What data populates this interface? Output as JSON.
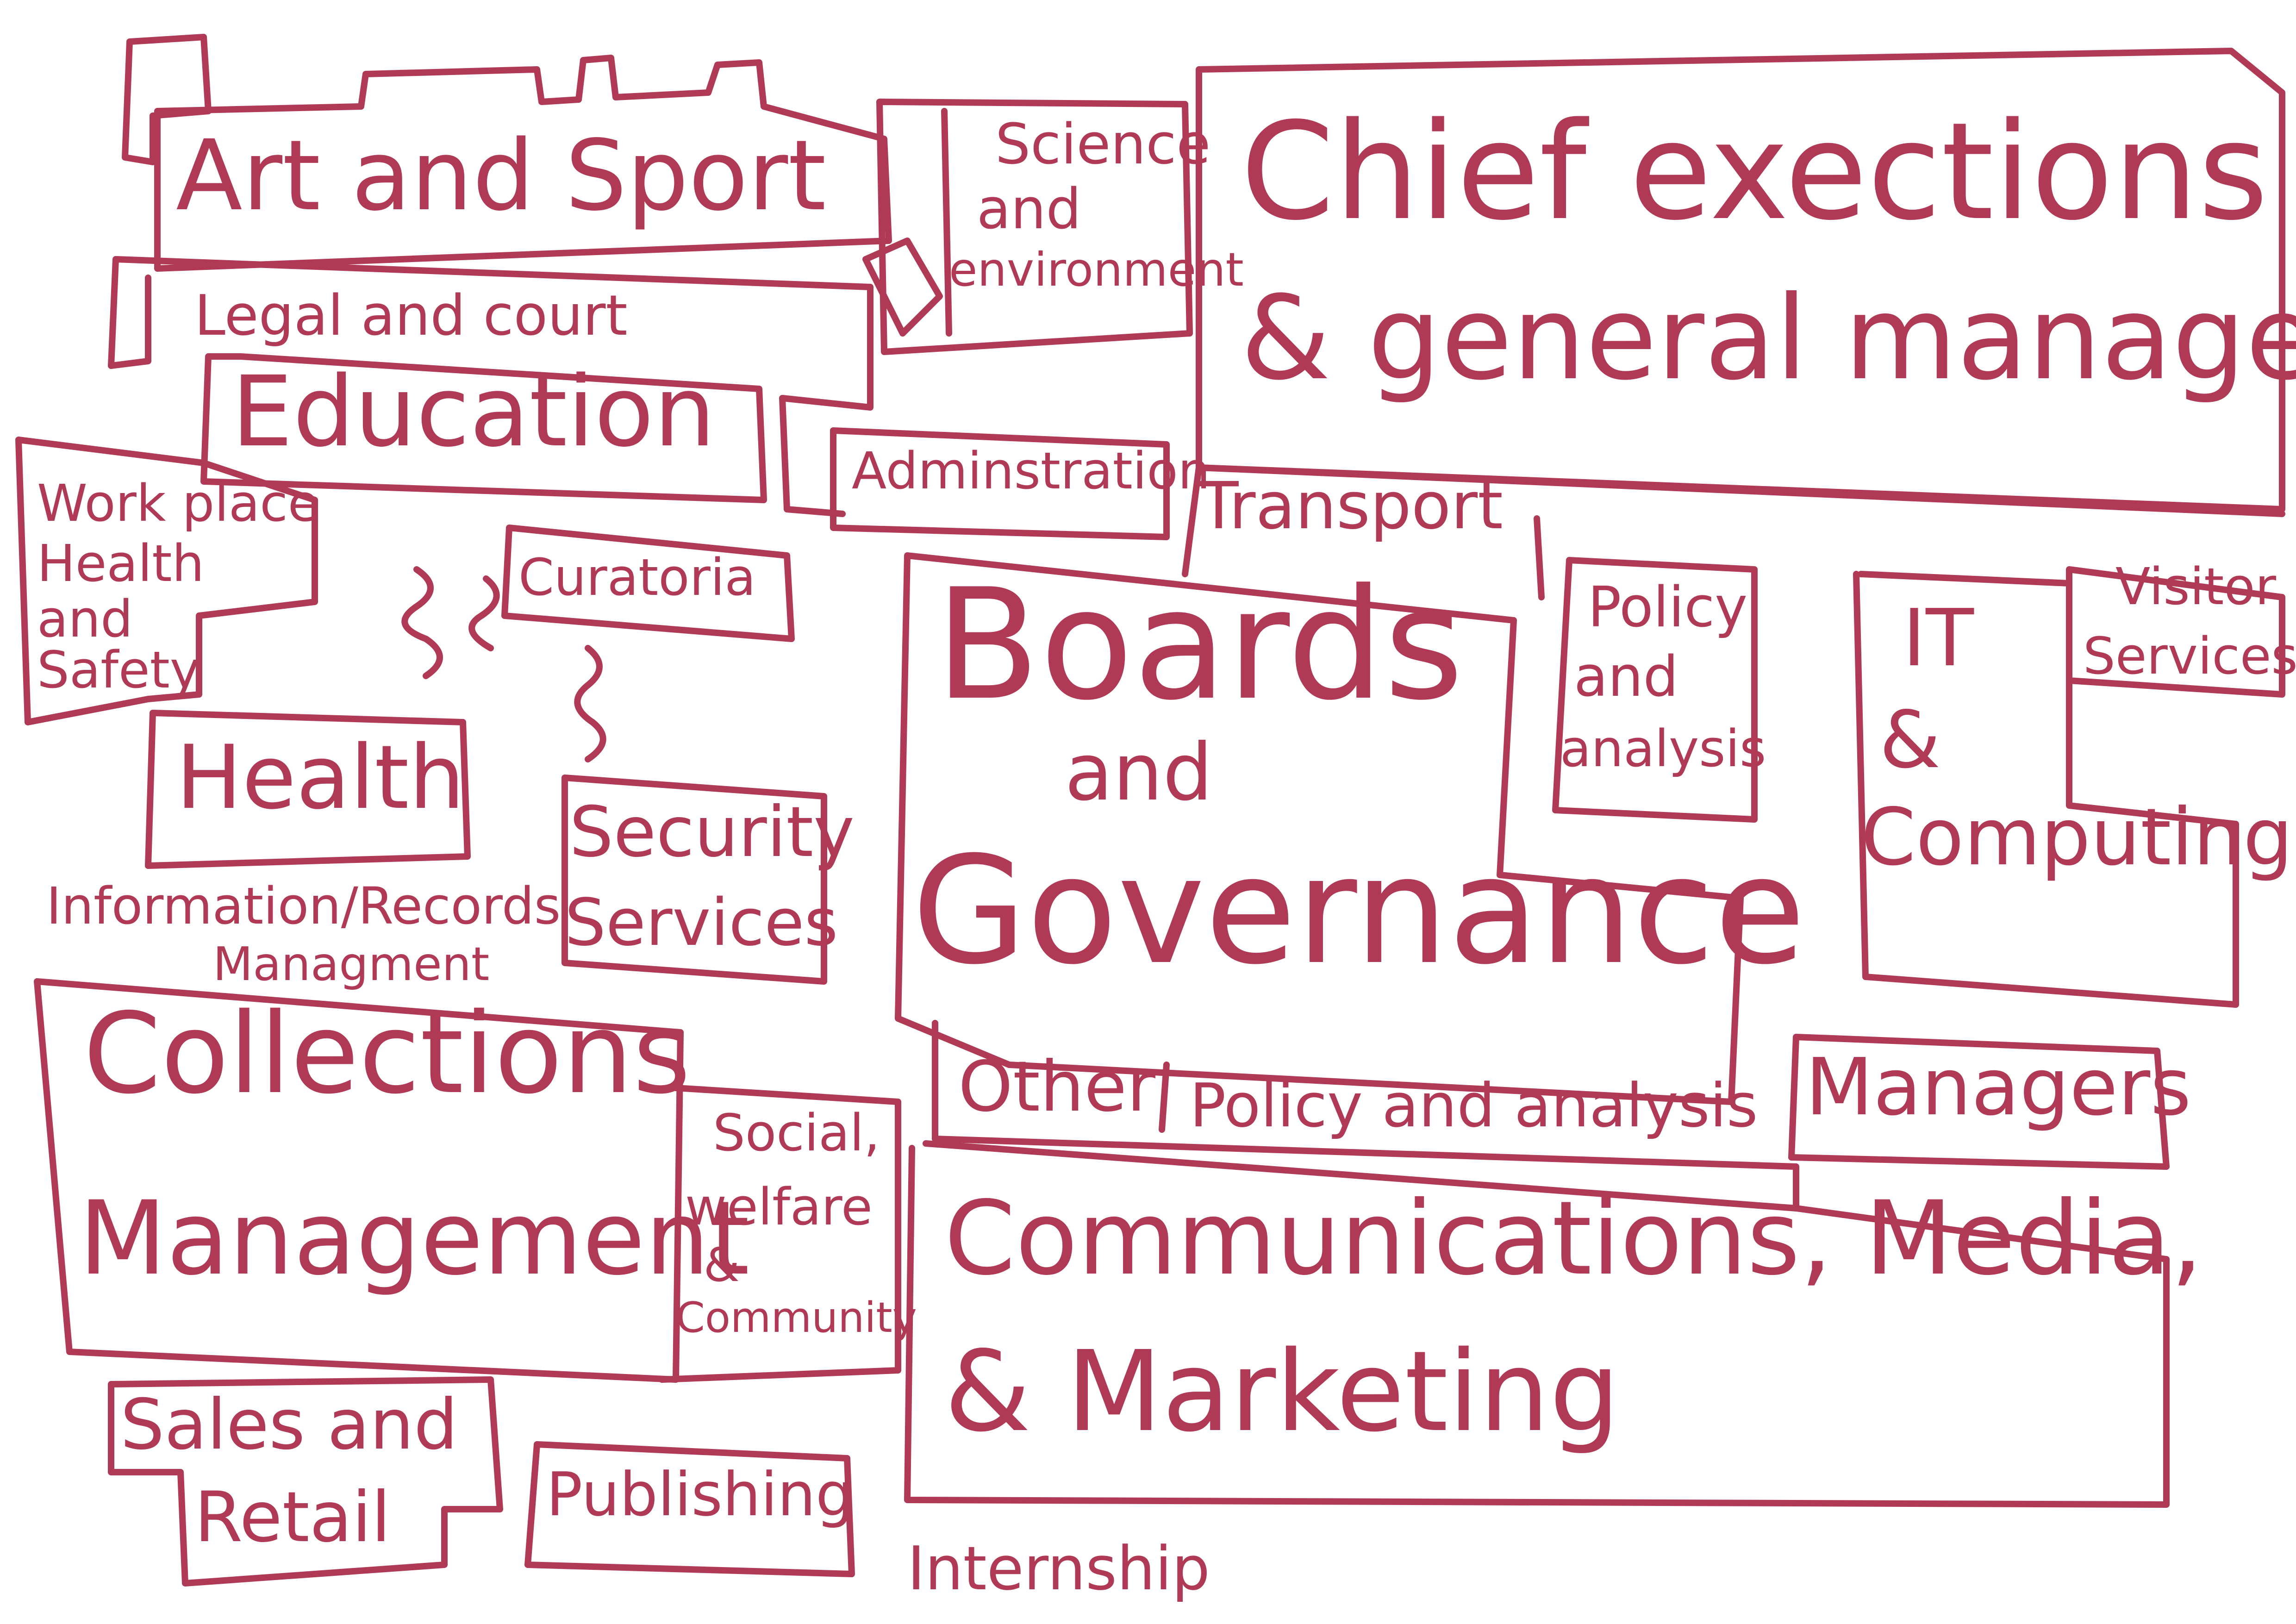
{
  "theme": {
    "ink": "#b03a55",
    "background": "#ffffff"
  },
  "labels": {
    "art_and_sport": "Art and Sport",
    "science_and_environment_line1": "Science",
    "science_and_environment_line2": "and",
    "science_and_environment_line3": "environment",
    "chief_executives_line1": "Chief exections",
    "chief_executives_line2": "& general managers",
    "legal_and_court": "Legal and court",
    "education": "Education",
    "administration": "Adminstration",
    "workplace_line1": "Work place",
    "workplace_line2": "Health",
    "workplace_line3": "and",
    "workplace_line4": "Safety",
    "curatorial": "Curatoria",
    "transport": "Transport",
    "policy_and_analysis_line1": "Policy",
    "policy_and_analysis_line2": "and",
    "policy_and_analysis_line3": "analysis",
    "visitor_services_line1": "Visitor",
    "visitor_services_line2": "Services",
    "boards_line1": "Boards",
    "boards_line2": "and",
    "boards_line3": "Governance",
    "it_line1": "IT",
    "it_line2": "&",
    "it_line3": "Computing",
    "health": "Health",
    "security_line1": "Security",
    "security_line2": "Services",
    "info_records_line1": "Information/Records",
    "info_records_line2": "Managment",
    "collections_line1": "Collections",
    "collections_line2": "Management",
    "social_line1": "Social,",
    "social_line2": "welfare",
    "social_line3": "&",
    "social_line4": "Community",
    "other": "Other",
    "other_policy": "Policy and analysis",
    "managers": "Managers",
    "communications_line1": "Communications, Media,",
    "communications_line2": "& Marketing",
    "sales_line1": "Sales and",
    "sales_line2": "Retail",
    "publishing": "Publishing",
    "internship": "Internship"
  }
}
